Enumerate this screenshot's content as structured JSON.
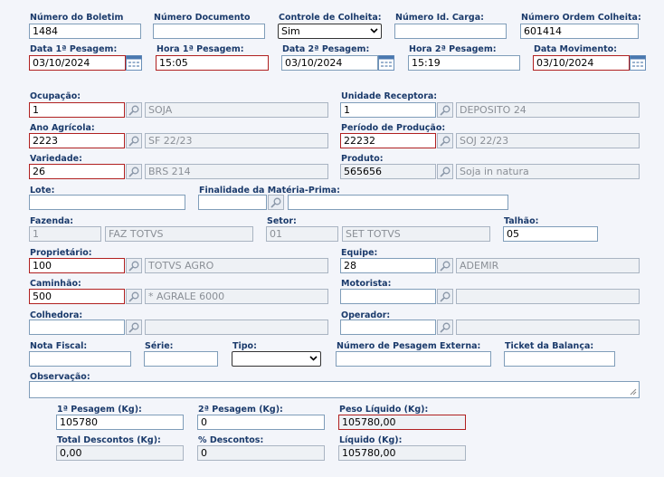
{
  "boletim": {
    "label": "Número do Boletim",
    "value": "1484"
  },
  "documento": {
    "label": "Número Documento",
    "value": ""
  },
  "controle": {
    "label": "Controle de Colheita:",
    "value": "Sim"
  },
  "idcarga": {
    "label": "Número Id. Carga:",
    "value": ""
  },
  "ordem": {
    "label": "Número Ordem Colheita:",
    "value": "601414"
  },
  "data1": {
    "label": "Data 1ª Pesagem:",
    "value": "03/10/2024"
  },
  "hora1": {
    "label": "Hora 1ª Pesagem:",
    "value": "15:05"
  },
  "data2": {
    "label": "Data 2ª Pesagem:",
    "value": "03/10/2024"
  },
  "hora2": {
    "label": "Hora 2ª Pesagem:",
    "value": "15:19"
  },
  "datamov": {
    "label": "Data Movimento:",
    "value": "03/10/2024"
  },
  "ocupacao": {
    "label": "Ocupação:",
    "code": "1",
    "desc": "SOJA"
  },
  "unidade": {
    "label": "Unidade Receptora:",
    "code": "1",
    "desc": "DEPOSITO 24"
  },
  "anoagricola": {
    "label": "Ano Agrícola:",
    "code": "2223",
    "desc": "SF 22/23"
  },
  "periodo": {
    "label": "Período de Produção:",
    "code": "22232",
    "desc": "SOJ 22/23"
  },
  "variedade": {
    "label": "Variedade:",
    "code": "26",
    "desc": "BRS 214"
  },
  "produto": {
    "label": "Produto:",
    "code": "565656",
    "desc": "Soja in natura"
  },
  "lote": {
    "label": "Lote:",
    "value": ""
  },
  "finalidade": {
    "label": "Finalidade da Matéria-Prima:",
    "code": "",
    "desc": ""
  },
  "fazenda": {
    "label": "Fazenda:",
    "code": "1",
    "desc": "FAZ TOTVS"
  },
  "setor": {
    "label": "Setor:",
    "code": "01",
    "desc": "SET TOTVS"
  },
  "talhao": {
    "label": "Talhão:",
    "value": "05"
  },
  "proprietario": {
    "label": "Proprietário:",
    "code": "100",
    "desc": "TOTVS AGRO"
  },
  "equipe": {
    "label": "Equipe:",
    "code": "28",
    "desc": "ADEMIR"
  },
  "caminhao": {
    "label": "Caminhão:",
    "code": "500",
    "desc": "* AGRALE 6000"
  },
  "motorista": {
    "label": "Motorista:",
    "code": "",
    "desc": ""
  },
  "colhedora": {
    "label": "Colhedora:",
    "code": "",
    "desc": ""
  },
  "operador": {
    "label": "Operador:",
    "code": "",
    "desc": ""
  },
  "notafiscal": {
    "label": "Nota Fiscal:",
    "value": ""
  },
  "serie": {
    "label": "Série:",
    "value": ""
  },
  "tipo": {
    "label": "Tipo:",
    "value": ""
  },
  "pesagemext": {
    "label": "Número de Pesagem Externa:",
    "value": ""
  },
  "ticket": {
    "label": "Ticket da Balança:",
    "value": ""
  },
  "observacao": {
    "label": "Observação:",
    "value": ""
  },
  "peso1": {
    "label": "1ª Pesagem (Kg):",
    "value": "105780"
  },
  "peso2": {
    "label": "2ª Pesagem (Kg):",
    "value": "0"
  },
  "pesoliq": {
    "label": "Peso Líquido (Kg):",
    "value": "105780,00"
  },
  "totaldesc": {
    "label": "Total Descontos (Kg):",
    "value": "0,00"
  },
  "percdesc": {
    "label": "% Descontos:",
    "value": "0"
  },
  "liquido": {
    "label": "Líquido (Kg):",
    "value": "105780,00"
  }
}
